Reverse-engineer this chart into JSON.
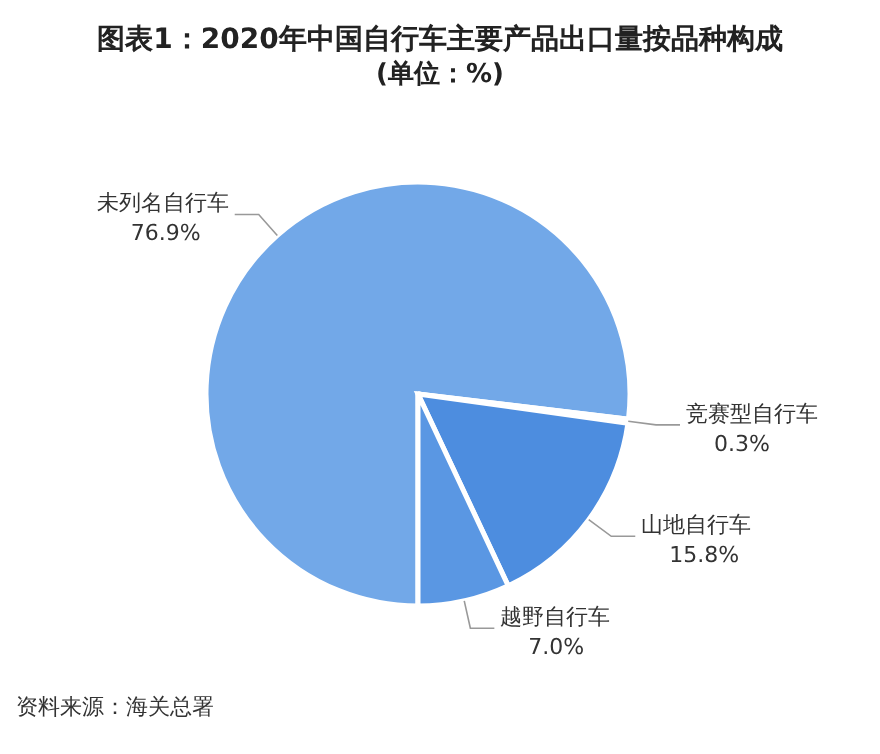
{
  "chart_data": {
    "type": "pie",
    "title": "图表1：2020年中国自行车主要产品出口量按品种构成",
    "subtitle": "(单位：%)",
    "categories": [
      "未列名自行车",
      "竞赛型自行车",
      "山地自行车",
      "越野自行车"
    ],
    "values": [
      76.9,
      0.3,
      15.8,
      7.0
    ],
    "value_labels": [
      "76.9%",
      "0.3%",
      "15.8%",
      "7.0%"
    ],
    "colors": [
      "#72a8e8",
      "#4d8ddf",
      "#4d8ddf",
      "#5a97e3"
    ],
    "annotations": [
      "资料来源：海关总署"
    ]
  }
}
